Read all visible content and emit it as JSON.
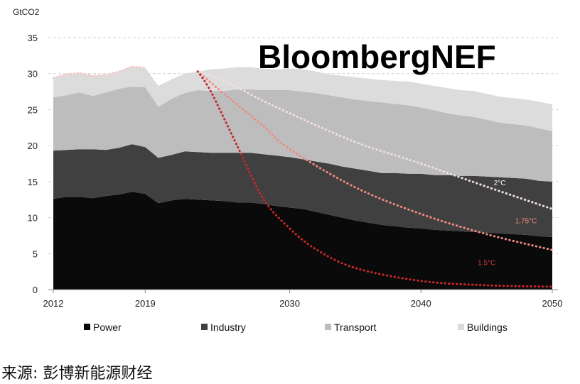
{
  "chart_data": {
    "type": "area",
    "ylabel": "GtCO2",
    "ylim": [
      0,
      35
    ],
    "yticks": [
      0,
      5,
      10,
      15,
      20,
      25,
      30,
      35
    ],
    "xlim": [
      2012,
      2050
    ],
    "xticks": [
      2012,
      2019,
      2030,
      2040,
      2050
    ],
    "grid": "horizontal dashed",
    "watermark": "BloombergNEF",
    "x": [
      2012,
      2013,
      2014,
      2015,
      2016,
      2017,
      2018,
      2019,
      2020,
      2021,
      2022,
      2023,
      2024,
      2025,
      2026,
      2027,
      2028,
      2029,
      2030,
      2031,
      2032,
      2033,
      2034,
      2035,
      2036,
      2037,
      2038,
      2039,
      2040,
      2041,
      2042,
      2043,
      2044,
      2045,
      2046,
      2047,
      2048,
      2049,
      2050
    ],
    "series": [
      {
        "name": "Power",
        "color": "#0a0a0a",
        "values": [
          12.6,
          12.9,
          12.9,
          12.7,
          13.0,
          13.2,
          13.6,
          13.3,
          12.0,
          12.4,
          12.6,
          12.5,
          12.4,
          12.3,
          12.1,
          12.1,
          11.9,
          11.6,
          11.4,
          11.2,
          10.8,
          10.4,
          10.0,
          9.6,
          9.3,
          9.0,
          8.8,
          8.6,
          8.5,
          8.3,
          8.2,
          8.1,
          8.0,
          7.9,
          7.8,
          7.7,
          7.6,
          7.4,
          7.3
        ]
      },
      {
        "name": "Industry",
        "color": "#404040",
        "values": [
          6.7,
          6.5,
          6.6,
          6.8,
          6.4,
          6.5,
          6.6,
          6.5,
          6.3,
          6.3,
          6.6,
          6.6,
          6.6,
          6.7,
          6.9,
          6.9,
          6.9,
          7.0,
          7.0,
          6.9,
          7.0,
          7.1,
          7.1,
          7.2,
          7.2,
          7.2,
          7.4,
          7.5,
          7.6,
          7.6,
          7.7,
          7.7,
          7.8,
          7.8,
          7.8,
          7.8,
          7.8,
          7.7,
          7.7
        ]
      },
      {
        "name": "Transport",
        "color": "#bdbdbd",
        "values": [
          7.4,
          7.6,
          7.9,
          7.4,
          8.0,
          8.2,
          8.0,
          8.3,
          7.1,
          7.8,
          8.1,
          8.6,
          8.6,
          8.6,
          8.8,
          8.8,
          8.9,
          9.1,
          9.3,
          9.4,
          9.5,
          9.5,
          9.6,
          9.6,
          9.7,
          9.8,
          9.6,
          9.5,
          9.2,
          9.0,
          8.6,
          8.4,
          8.2,
          7.9,
          7.6,
          7.5,
          7.4,
          7.3,
          7.0
        ]
      },
      {
        "name": "Buildings",
        "color": "#dcdcdc",
        "values": [
          2.7,
          2.9,
          2.7,
          2.8,
          2.4,
          2.4,
          2.8,
          2.7,
          2.9,
          2.7,
          2.7,
          2.6,
          3.0,
          3.1,
          3.1,
          3.1,
          3.0,
          2.9,
          3.0,
          3.1,
          3.0,
          2.9,
          3.0,
          3.1,
          3.1,
          3.1,
          3.2,
          3.3,
          3.3,
          3.4,
          3.5,
          3.5,
          3.6,
          3.6,
          3.6,
          3.6,
          3.6,
          3.7,
          3.7
        ]
      }
    ],
    "pathways": [
      {
        "label": "2°C",
        "color": "#f2e0e0",
        "label_color": "#ffffff",
        "label_at": [
          2046,
          14.5
        ],
        "points": [
          [
            2023,
            30.3
          ],
          [
            2025,
            29.0
          ],
          [
            2028,
            26.2
          ],
          [
            2030,
            24.5
          ],
          [
            2035,
            20.5
          ],
          [
            2040,
            17.5
          ],
          [
            2045,
            14.3
          ],
          [
            2050,
            11.2
          ]
        ]
      },
      {
        "label": "1.75°C",
        "color": "#f08a80",
        "label_color": "#f08a80",
        "label_at": [
          2048,
          9.2
        ],
        "points": [
          [
            2023,
            30.3
          ],
          [
            2025,
            27.2
          ],
          [
            2028,
            22.7
          ],
          [
            2030,
            19.5
          ],
          [
            2035,
            14.2
          ],
          [
            2040,
            10.5
          ],
          [
            2045,
            7.7
          ],
          [
            2050,
            5.5
          ]
        ]
      },
      {
        "label": "1.5°C",
        "color": "#c62828",
        "label_color": "#d03a3a",
        "label_at": [
          2045,
          3.4
        ],
        "points": [
          [
            2023,
            30.3
          ],
          [
            2024,
            27.5
          ],
          [
            2026,
            20.0
          ],
          [
            2028,
            12.6
          ],
          [
            2030,
            8.5
          ],
          [
            2032,
            5.6
          ],
          [
            2035,
            3.0
          ],
          [
            2040,
            1.2
          ],
          [
            2045,
            0.6
          ],
          [
            2050,
            0.4
          ]
        ]
      }
    ],
    "legend": [
      "Power",
      "Industry",
      "Transport",
      "Buildings"
    ],
    "legend_position": "bottom"
  },
  "source": "来源: 彭博新能源财经"
}
